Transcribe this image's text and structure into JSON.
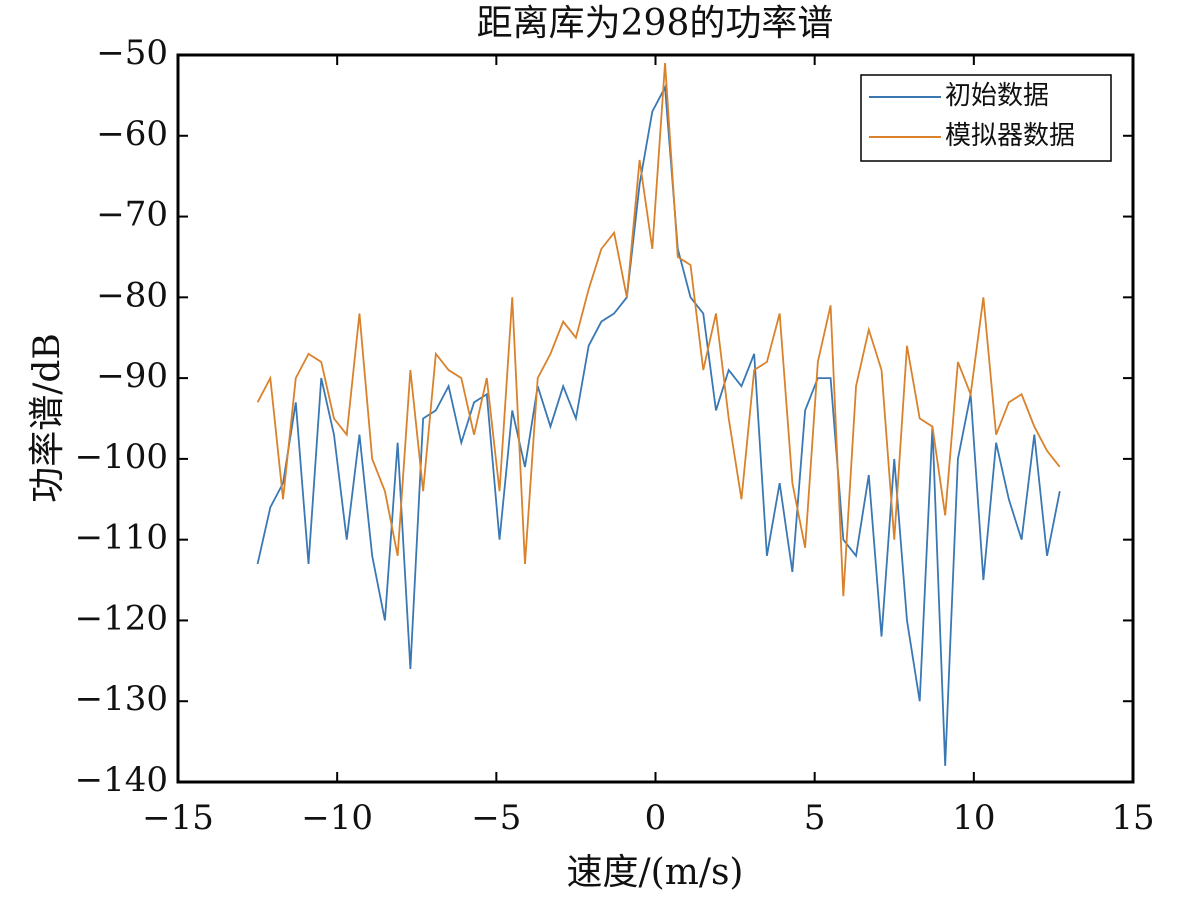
{
  "chart_data": {
    "type": "line",
    "title": "距离库为298的功率谱",
    "x_label": "速度/(m/s)",
    "y_label": "功率谱/dB",
    "x": [
      -12.5,
      -12.1,
      -11.7,
      -11.3,
      -10.9,
      -10.5,
      -10.1,
      -9.7,
      -9.3,
      -8.9,
      -8.5,
      -8.1,
      -7.7,
      -7.3,
      -6.9,
      -6.5,
      -6.1,
      -5.7,
      -5.3,
      -4.9,
      -4.5,
      -4.1,
      -3.7,
      -3.3,
      -2.9,
      -2.5,
      -2.1,
      -1.7,
      -1.3,
      -0.9,
      -0.5,
      -0.1,
      0.3,
      0.7,
      1.1,
      1.5,
      1.9,
      2.3,
      2.7,
      3.1,
      3.5,
      3.9,
      4.3,
      4.7,
      5.1,
      5.5,
      5.9,
      6.3,
      6.7,
      7.1,
      7.5,
      7.9,
      8.3,
      8.7,
      9.1,
      9.5,
      9.9,
      10.3,
      10.7,
      11.1,
      11.5,
      11.9,
      12.3,
      12.7
    ],
    "series": [
      {
        "name": "初始数据",
        "color": "#3a78b4",
        "values": [
          -113,
          -106,
          -103,
          -93,
          -113,
          -90,
          -97,
          -110,
          -97,
          -112,
          -120,
          -98,
          -126,
          -95,
          -94,
          -91,
          -98,
          -93,
          -92,
          -110,
          -94,
          -101,
          -91,
          -96,
          -91,
          -95,
          -86,
          -83,
          -82,
          -80,
          -66,
          -57,
          -54,
          -74,
          -80,
          -82,
          -94,
          -89,
          -91,
          -87,
          -112,
          -103,
          -114,
          -94,
          -90,
          -90,
          -110,
          -112,
          -102,
          -122,
          -100,
          -120,
          -130,
          -96,
          -138,
          -100,
          -92,
          -115,
          -98,
          -105,
          -110,
          -97,
          -112,
          -104
        ]
      },
      {
        "name": "模拟器数据",
        "color": "#d9822b",
        "values": [
          -93,
          -90,
          -105,
          -90,
          -87,
          -88,
          -95,
          -97,
          -82,
          -100,
          -104,
          -112,
          -89,
          -104,
          -87,
          -89,
          -90,
          -97,
          -90,
          -104,
          -80,
          -113,
          -90,
          -87,
          -83,
          -85,
          -79,
          -74,
          -72,
          -80,
          -63,
          -74,
          -51,
          -75,
          -76,
          -89,
          -82,
          -95,
          -105,
          -89,
          -88,
          -82,
          -103,
          -111,
          -88,
          -81,
          -117,
          -91,
          -84,
          -89,
          -110,
          -86,
          -95,
          -96,
          -107,
          -88,
          -92,
          -80,
          -97,
          -93,
          -92,
          -96,
          -99,
          -101
        ]
      }
    ],
    "xlim": [
      -15,
      15
    ],
    "xticks": [
      {
        "value": -15,
        "label": "−15"
      },
      {
        "value": -10,
        "label": "−10"
      },
      {
        "value": -5,
        "label": "−5"
      },
      0,
      5,
      10,
      15
    ],
    "ylim": [
      -140,
      -50
    ],
    "yticks": [
      {
        "value": -140,
        "label": "−140"
      },
      {
        "value": -130,
        "label": "−130"
      },
      {
        "value": -120,
        "label": "−120"
      },
      {
        "value": -110,
        "label": "−110"
      },
      {
        "value": -100,
        "label": "−100"
      },
      {
        "value": -90,
        "label": "−90"
      },
      {
        "value": -80,
        "label": "−80"
      },
      {
        "value": -70,
        "label": "−70"
      },
      {
        "value": -60,
        "label": "−60"
      },
      {
        "value": -50,
        "label": "−50"
      }
    ],
    "legend": "upper right"
  }
}
